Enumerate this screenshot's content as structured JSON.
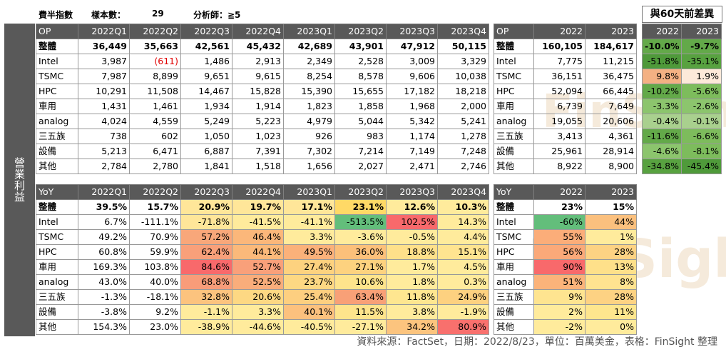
{
  "meta": {
    "label_a": "費半指數",
    "sample_label": "樣本數：",
    "sample_value": "29",
    "analyst_label": "分析師：≧5"
  },
  "side_label": "營業利益",
  "diff_title": "與60天前差異",
  "op_table": {
    "header": [
      "OP",
      "2022Q1",
      "2022Q2",
      "2022Q3",
      "2022Q4",
      "2023Q1",
      "2023Q2",
      "2023Q3",
      "2023Q4"
    ],
    "rows": [
      [
        "整體",
        "36,449",
        "35,663",
        "42,561",
        "45,432",
        "42,689",
        "43,901",
        "47,912",
        "50,115"
      ],
      [
        "Intel",
        "3,987",
        "(611)",
        "1,486",
        "2,913",
        "2,349",
        "2,528",
        "3,009",
        "3,329"
      ],
      [
        "TSMC",
        "7,987",
        "8,899",
        "9,651",
        "9,615",
        "8,254",
        "8,578",
        "9,606",
        "10,038"
      ],
      [
        "HPC",
        "10,291",
        "11,508",
        "14,467",
        "15,828",
        "15,390",
        "15,655",
        "17,182",
        "18,218"
      ],
      [
        "車用",
        "1,431",
        "1,461",
        "1,934",
        "1,914",
        "1,823",
        "1,858",
        "1,968",
        "2,000"
      ],
      [
        "analog",
        "4,024",
        "4,559",
        "5,249",
        "5,223",
        "4,979",
        "5,044",
        "5,342",
        "5,241"
      ],
      [
        "三五族",
        "738",
        "602",
        "1,050",
        "1,023",
        "926",
        "983",
        "1,174",
        "1,278"
      ],
      [
        "設備",
        "5,213",
        "6,471",
        "6,887",
        "7,391",
        "7,302",
        "7,214",
        "7,149",
        "7,248"
      ],
      [
        "其他",
        "2,784",
        "2,780",
        "1,841",
        "1,518",
        "1,656",
        "2,027",
        "2,471",
        "2,746"
      ]
    ]
  },
  "op_annual": {
    "header": [
      "OP",
      "2022",
      "2023"
    ],
    "rows": [
      [
        "整體",
        "160,105",
        "184,617"
      ],
      [
        "Intel",
        "7,775",
        "11,215"
      ],
      [
        "TSMC",
        "36,151",
        "36,475"
      ],
      [
        "HPC",
        "52,094",
        "66,445"
      ],
      [
        "車用",
        "6,739",
        "7,649"
      ],
      [
        "analog",
        "19,055",
        "20,606"
      ],
      [
        "三五族",
        "3,413",
        "4,361"
      ],
      [
        "設備",
        "25,961",
        "28,914"
      ],
      [
        "其他",
        "8,922",
        "8,900"
      ]
    ]
  },
  "diff_table": {
    "header": [
      "2022",
      "2023"
    ],
    "rows": [
      [
        "-10.0%",
        "-9.7%"
      ],
      [
        "-51.8%",
        "-35.1%"
      ],
      [
        "9.8%",
        "1.9%"
      ],
      [
        "-10.2%",
        "-5.6%"
      ],
      [
        "-3.3%",
        "-2.6%"
      ],
      [
        "-0.4%",
        "-0.1%"
      ],
      [
        "-11.6%",
        "-6.6%"
      ],
      [
        "-4.6%",
        "-8.1%"
      ],
      [
        "-34.8%",
        "-45.4%"
      ]
    ],
    "colors": [
      [
        "#63a949",
        "#63a949"
      ],
      [
        "#4f9a3a",
        "#58a240"
      ],
      [
        "#f4b183",
        "#fde9d9"
      ],
      [
        "#63a949",
        "#7dbc5c"
      ],
      [
        "#8cc56d",
        "#8cc56d"
      ],
      [
        "#a9d08e",
        "#a9d08e"
      ],
      [
        "#63a949",
        "#7dbc5c"
      ],
      [
        "#8cc56d",
        "#7dbc5c"
      ],
      [
        "#58a240",
        "#4f9a3a"
      ]
    ]
  },
  "yoy_table": {
    "header": [
      "YoY",
      "2022Q1",
      "2022Q2",
      "2022Q3",
      "2022Q4",
      "2023Q1",
      "2023Q2",
      "2023Q3",
      "2023Q4"
    ],
    "rows": [
      [
        "整體",
        "39.5%",
        "15.7%",
        "20.9%",
        "19.7%",
        "17.1%",
        "23.1%",
        "12.6%",
        "10.3%"
      ],
      [
        "Intel",
        "6.7%",
        "-111.1%",
        "-71.8%",
        "-41.5%",
        "-41.1%",
        "-513.5%",
        "102.5%",
        "14.3%"
      ],
      [
        "TSMC",
        "49.2%",
        "70.9%",
        "57.2%",
        "46.4%",
        "3.3%",
        "-3.6%",
        "-0.5%",
        "4.4%"
      ],
      [
        "HPC",
        "60.8%",
        "59.9%",
        "62.4%",
        "44.1%",
        "49.5%",
        "36.0%",
        "18.8%",
        "15.1%"
      ],
      [
        "車用",
        "169.3%",
        "103.8%",
        "84.6%",
        "52.7%",
        "27.4%",
        "27.1%",
        "1.7%",
        "4.5%"
      ],
      [
        "analog",
        "43.0%",
        "40.0%",
        "68.8%",
        "52.5%",
        "23.7%",
        "10.6%",
        "1.8%",
        "0.3%"
      ],
      [
        "三五族",
        "-1.3%",
        "-18.1%",
        "32.8%",
        "20.6%",
        "25.4%",
        "63.4%",
        "11.8%",
        "24.9%"
      ],
      [
        "設備",
        "-3.8%",
        "9.2%",
        "-1.1%",
        "3.3%",
        "40.1%",
        "11.5%",
        "3.8%",
        "-1.9%"
      ],
      [
        "其他",
        "154.3%",
        "23.0%",
        "-38.9%",
        "-44.6%",
        "-40.5%",
        "-27.1%",
        "34.2%",
        "80.9%"
      ]
    ],
    "colors": [
      [
        "#fff",
        "#fff",
        "#ffe699",
        "#ffe699",
        "#ffe699",
        "#ffd966",
        "#ffeb9c",
        "#ffeb9c"
      ],
      [
        "#fff",
        "#fff",
        "#ffe699",
        "#ffeb9c",
        "#ffeb9c",
        "#63be7b",
        "#f8696b",
        "#ffeb9c"
      ],
      [
        "#fff",
        "#fff",
        "#f8a77a",
        "#fbb77a",
        "#ffeb9c",
        "#ffeb9c",
        "#ffeb9c",
        "#ffeb9c"
      ],
      [
        "#fff",
        "#fff",
        "#f8a07a",
        "#fbb97a",
        "#fbb17a",
        "#fcc07a",
        "#ffe08a",
        "#ffe490"
      ],
      [
        "#fff",
        "#fff",
        "#f8696b",
        "#f9a07a",
        "#fdd27f",
        "#fdd27f",
        "#ffeb9c",
        "#ffeb9c"
      ],
      [
        "#fff",
        "#fff",
        "#f89c79",
        "#f9ad7b",
        "#fdd883",
        "#fee48c",
        "#ffeb9c",
        "#ffeb9c"
      ],
      [
        "#fff",
        "#fff",
        "#fcc37e",
        "#fdd883",
        "#fdcf80",
        "#f8a077",
        "#fee690",
        "#fdd180"
      ],
      [
        "#fff",
        "#fff",
        "#ffeb9c",
        "#ffeb9c",
        "#fcc17e",
        "#fee48c",
        "#ffeb9c",
        "#ffeb9c"
      ],
      [
        "#fff",
        "#fff",
        "#ffeb9c",
        "#ffeb9c",
        "#ffeb9c",
        "#ffeb9c",
        "#fcc47e",
        "#f8706d"
      ]
    ]
  },
  "yoy_annual": {
    "header": [
      "YoY",
      "2022",
      "2023"
    ],
    "rows": [
      [
        "整體",
        "23%",
        "15%"
      ],
      [
        "Intel",
        "-60%",
        "44%"
      ],
      [
        "TSMC",
        "55%",
        "1%"
      ],
      [
        "HPC",
        "56%",
        "28%"
      ],
      [
        "車用",
        "90%",
        "13%"
      ],
      [
        "analog",
        "51%",
        "8%"
      ],
      [
        "三五族",
        "9%",
        "28%"
      ],
      [
        "設備",
        "2%",
        "11%"
      ],
      [
        "其他",
        "-2%",
        "0%"
      ]
    ],
    "colors": [
      [
        "#fff",
        "#fff"
      ],
      [
        "#63be7b",
        "#fbc07e"
      ],
      [
        "#fbad79",
        "#ffeb9c"
      ],
      [
        "#fba979",
        "#fdd283"
      ],
      [
        "#f8696b",
        "#fee08a"
      ],
      [
        "#fbb37a",
        "#ffe390"
      ],
      [
        "#fee490",
        "#fdd283"
      ],
      [
        "#ffeb9c",
        "#fee68e"
      ],
      [
        "#ffeb9c",
        "#ffeb9c"
      ]
    ]
  },
  "footer": "資料來源：FactSet，日期：2022/8/23，單位：百萬美金，表格：FinSight 整理",
  "watermark": "FinSight"
}
